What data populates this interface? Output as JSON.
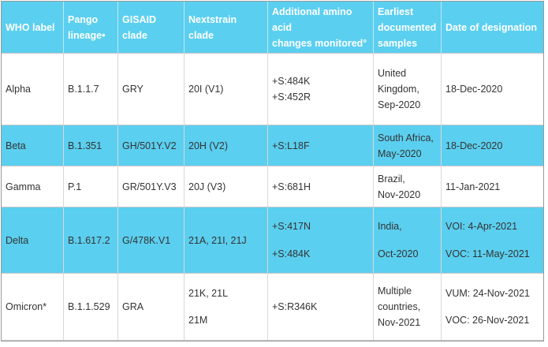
{
  "table": {
    "header": [
      [
        "WHO label"
      ],
      [
        "Pango",
        "lineage•"
      ],
      [
        "GISAID",
        "clade"
      ],
      [
        "Nextstrain clade"
      ],
      [
        "Additional amino",
        "acid",
        "changes monitored°"
      ],
      [
        "Earliest",
        "documented",
        "samples"
      ],
      [
        "Date of designation"
      ]
    ],
    "rows": [
      [
        [
          "Alpha"
        ],
        [
          "B.1.1.7"
        ],
        [
          "GRY"
        ],
        [
          "20I (V1)"
        ],
        [
          "+S:484K",
          "+S:452R"
        ],
        [
          "United",
          "Kingdom,",
          "Sep-2020"
        ],
        [
          "18-Dec-2020"
        ]
      ],
      [
        [
          "Beta"
        ],
        [
          "B.1.351"
        ],
        [
          "GH/501Y.V2"
        ],
        [
          "20H (V2)"
        ],
        [
          "+S:L18F"
        ],
        [
          "South Africa,",
          "May-2020"
        ],
        [
          "18-Dec-2020"
        ]
      ],
      [
        [
          "Gamma"
        ],
        [
          "P.1"
        ],
        [
          "GR/501Y.V3"
        ],
        [
          "20J (V3)"
        ],
        [
          "+S:681H"
        ],
        [
          "Brazil,",
          "Nov-2020"
        ],
        [
          "11-Jan-2021"
        ]
      ],
      [
        [
          "Delta"
        ],
        [
          "B.1.617.2"
        ],
        [
          "G/478K.V1"
        ],
        [
          "21A, 21I, 21J"
        ],
        [
          "+S:417N",
          "+S:484K"
        ],
        [
          "India,",
          "Oct-2020"
        ],
        [
          "VOI: 4-Apr-2021",
          "VOC: 11-May-2021"
        ]
      ],
      [
        [
          "Omicron*"
        ],
        [
          "B.1.1.529"
        ],
        [
          "GRA"
        ],
        [
          "21K, 21L",
          "21M"
        ],
        [
          "+S:R346K"
        ],
        [
          "Multiple",
          "countries,",
          "Nov-2021"
        ],
        [
          "VUM: 24-Nov-2021",
          "VOC: 26-Nov-2021"
        ]
      ]
    ]
  }
}
